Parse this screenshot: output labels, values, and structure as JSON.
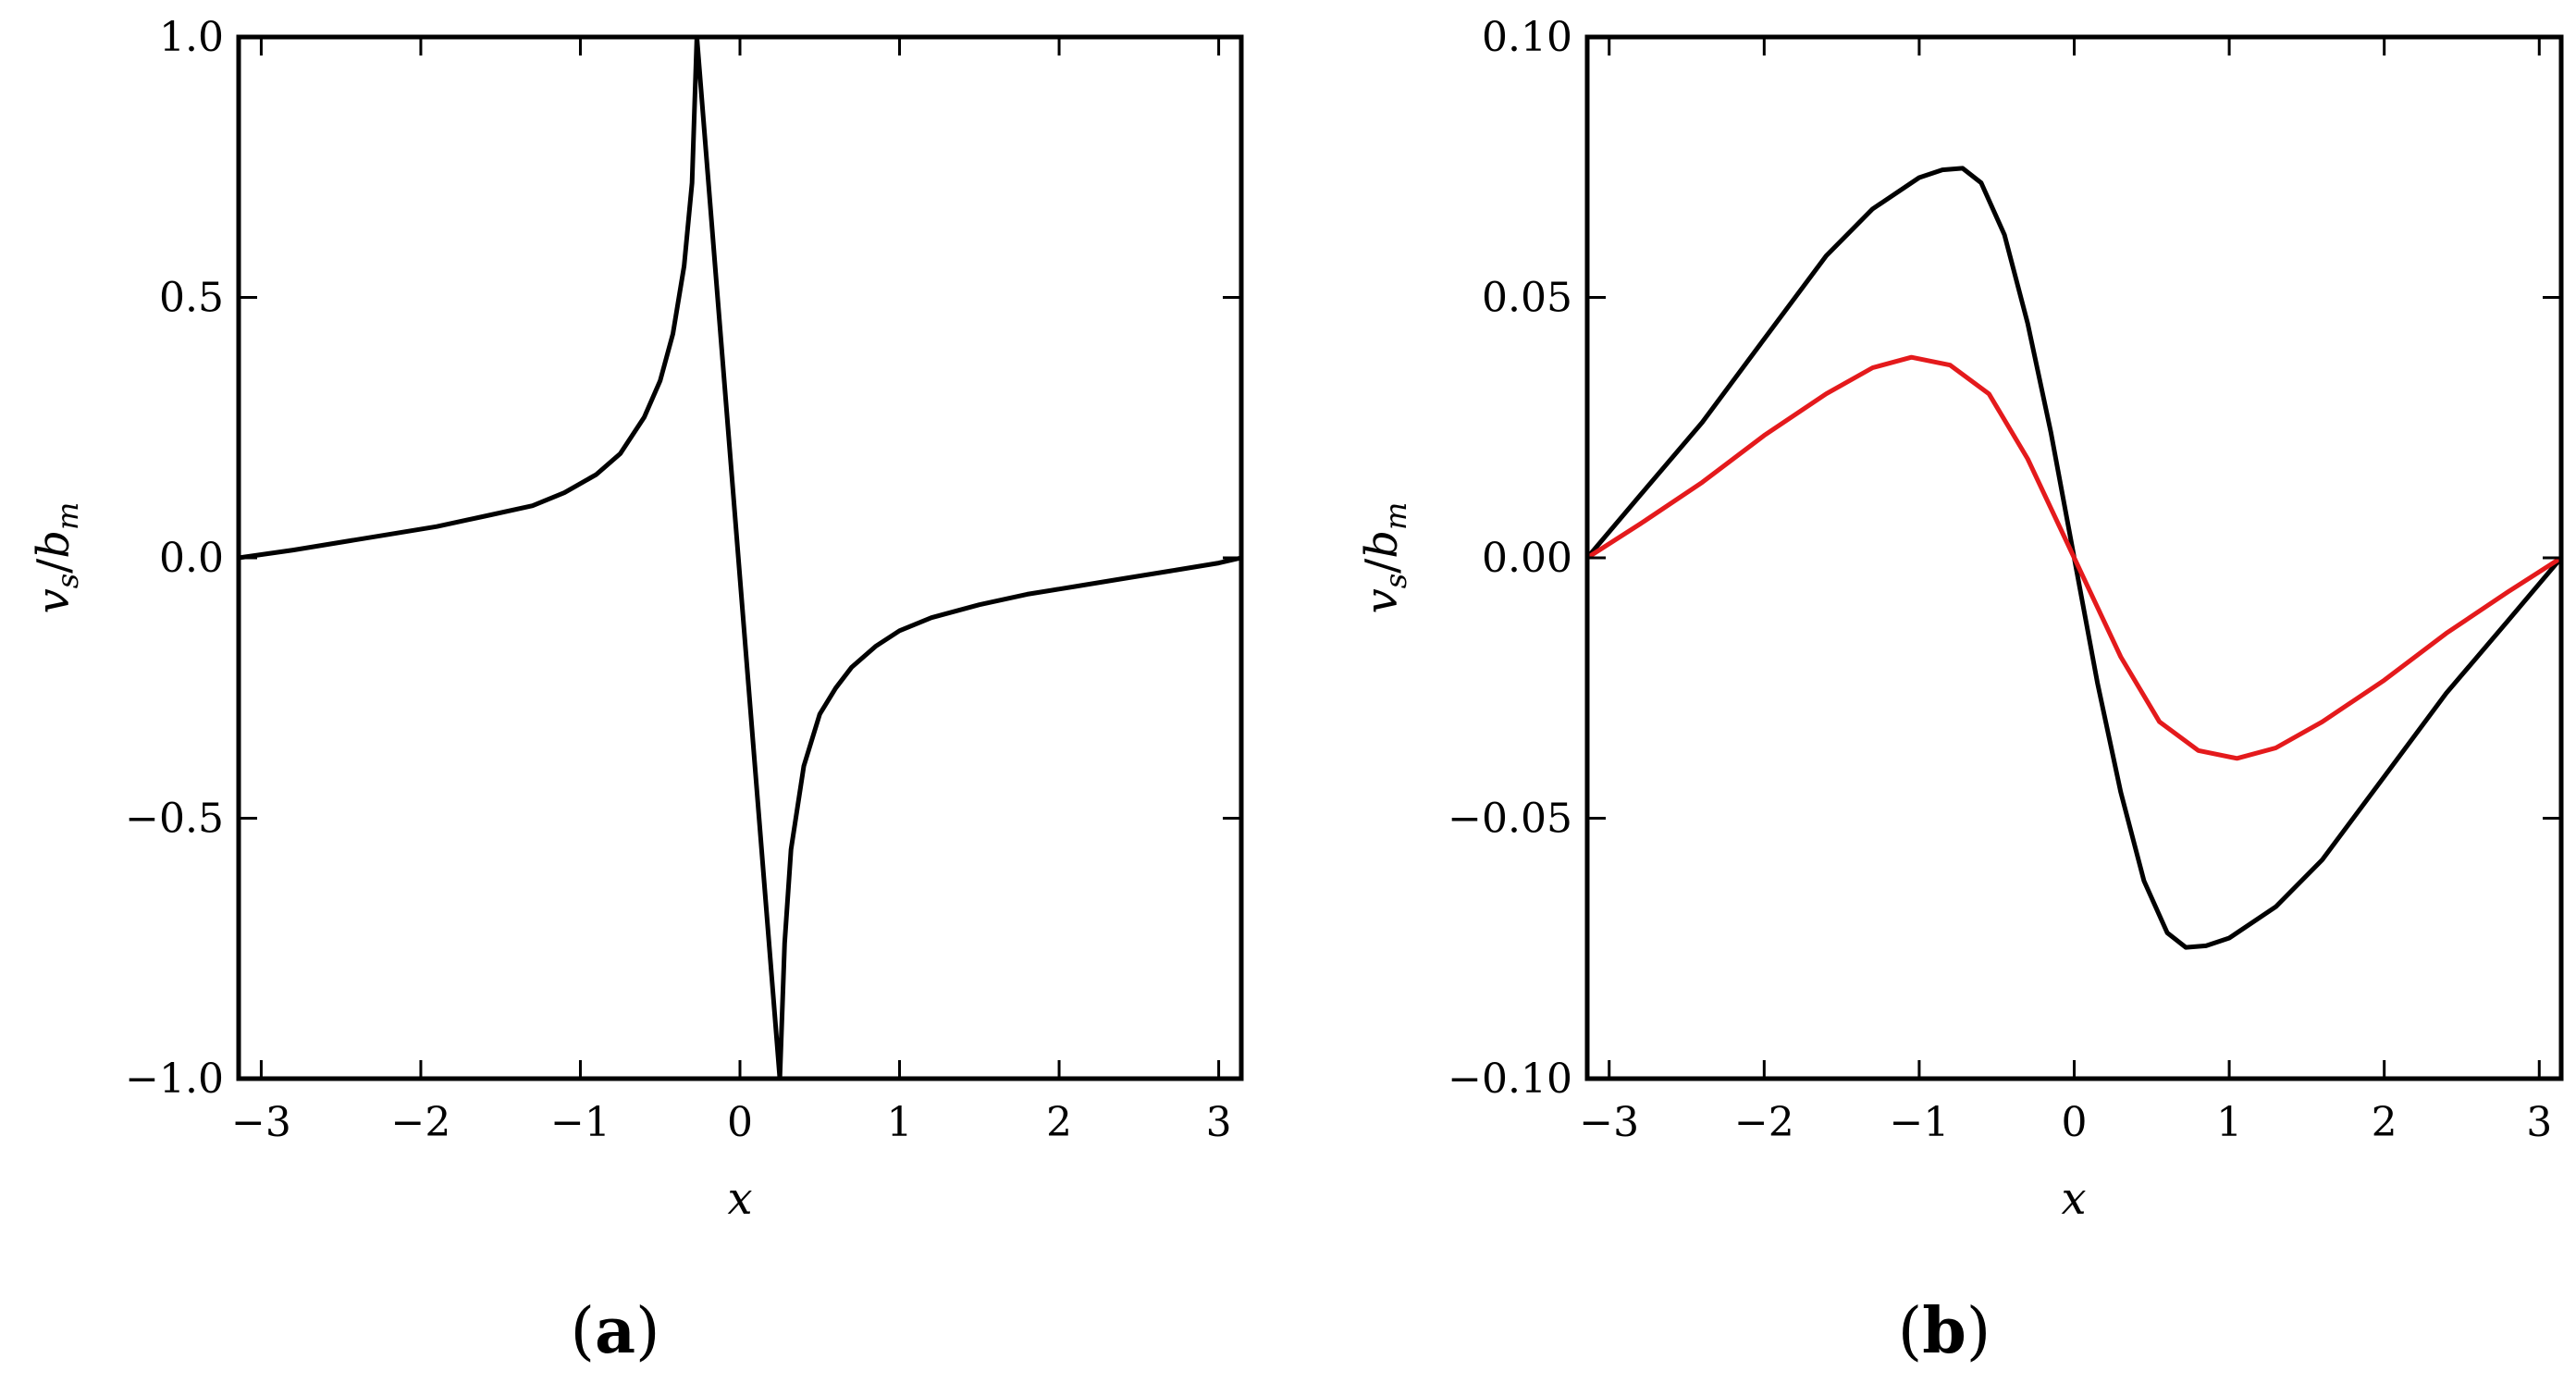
{
  "chart_data": [
    {
      "type": "line",
      "panel_label": "a",
      "xlabel": "x",
      "ylabel": "v_s/b_m",
      "ylabel_parts": {
        "v": "v",
        "s": "s",
        "slash": "/",
        "b": "b",
        "m": "m"
      },
      "xlim": [
        -3.1416,
        3.1416
      ],
      "ylim": [
        -1.0,
        1.0
      ],
      "xticks": [
        -3,
        -2,
        -1,
        0,
        1,
        2,
        3
      ],
      "xtick_labels": [
        "−3",
        "−2",
        "−1",
        "0",
        "1",
        "2",
        "3"
      ],
      "yticks": [
        -1.0,
        -0.5,
        0.0,
        0.5,
        1.0
      ],
      "ytick_labels": [
        "−1.0",
        "−0.5",
        "0.0",
        "0.5",
        "1.0"
      ],
      "grid": false,
      "series": [
        {
          "name": "v_s/b_m",
          "color": "#000000",
          "x": [
            -3.1416,
            -2.8,
            -2.5,
            -2.2,
            -1.9,
            -1.6,
            -1.3,
            -1.1,
            -0.9,
            -0.75,
            -0.6,
            -0.5,
            -0.42,
            -0.35,
            -0.3,
            -0.27,
            0.25,
            0.28,
            0.32,
            0.4,
            0.5,
            0.6,
            0.7,
            0.85,
            1.0,
            1.2,
            1.5,
            1.8,
            2.1,
            2.4,
            2.7,
            3.0,
            3.1416
          ],
          "y": [
            0.0,
            0.015,
            0.03,
            0.045,
            0.06,
            0.08,
            0.1,
            0.125,
            0.16,
            0.2,
            0.27,
            0.34,
            0.43,
            0.56,
            0.72,
            1.0,
            -1.0,
            -0.74,
            -0.56,
            -0.4,
            -0.3,
            -0.25,
            -0.21,
            -0.17,
            -0.14,
            -0.115,
            -0.09,
            -0.07,
            -0.055,
            -0.04,
            -0.025,
            -0.01,
            0.0
          ]
        }
      ]
    },
    {
      "type": "line",
      "panel_label": "b",
      "xlabel": "x",
      "ylabel": "v_s/b_m",
      "ylabel_parts": {
        "v": "v",
        "s": "s",
        "slash": "/",
        "b": "b",
        "m": "m"
      },
      "xlim": [
        -3.1416,
        3.1416
      ],
      "ylim": [
        -0.1,
        0.1
      ],
      "xticks": [
        -3,
        -2,
        -1,
        0,
        1,
        2,
        3
      ],
      "xtick_labels": [
        "−3",
        "−2",
        "−1",
        "0",
        "1",
        "2",
        "3"
      ],
      "yticks": [
        -0.1,
        -0.05,
        0.0,
        0.05,
        0.1
      ],
      "ytick_labels": [
        "−0.10",
        "−0.05",
        "0.00",
        "0.05",
        "0.10"
      ],
      "grid": false,
      "series": [
        {
          "name": "black curve",
          "color": "#000000",
          "x": [
            -3.1416,
            -2.8,
            -2.4,
            -2.0,
            -1.6,
            -1.3,
            -1.0,
            -0.85,
            -0.72,
            -0.6,
            -0.45,
            -0.3,
            -0.15,
            0.0,
            0.15,
            0.3,
            0.45,
            0.6,
            0.72,
            0.85,
            1.0,
            1.3,
            1.6,
            2.0,
            2.4,
            2.8,
            3.1416
          ],
          "y": [
            0.0,
            0.012,
            0.026,
            0.042,
            0.058,
            0.067,
            0.073,
            0.0745,
            0.0748,
            0.072,
            0.062,
            0.045,
            0.024,
            0.0,
            -0.024,
            -0.045,
            -0.062,
            -0.072,
            -0.0748,
            -0.0745,
            -0.073,
            -0.067,
            -0.058,
            -0.042,
            -0.026,
            -0.012,
            0.0
          ]
        },
        {
          "name": "red curve",
          "color": "#e41a1c",
          "x": [
            -3.1416,
            -2.8,
            -2.4,
            -2.0,
            -1.6,
            -1.3,
            -1.05,
            -0.8,
            -0.55,
            -0.3,
            0.0,
            0.3,
            0.55,
            0.8,
            1.05,
            1.3,
            1.6,
            2.0,
            2.4,
            2.8,
            3.1416
          ],
          "y": [
            0.0,
            0.0065,
            0.0145,
            0.0235,
            0.0315,
            0.0365,
            0.0385,
            0.037,
            0.0315,
            0.019,
            0.0,
            -0.019,
            -0.0315,
            -0.037,
            -0.0385,
            -0.0365,
            -0.0315,
            -0.0235,
            -0.0145,
            -0.0065,
            0.0
          ]
        }
      ]
    }
  ]
}
